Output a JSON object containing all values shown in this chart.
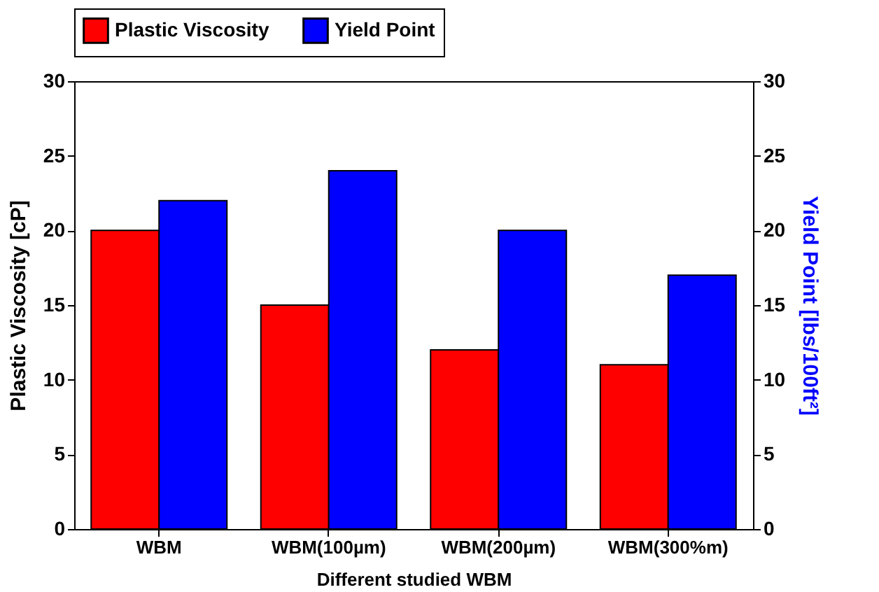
{
  "chart_data": {
    "type": "bar",
    "xlabel": "Different studied WBM",
    "ylabel": "Plastic Viscosity [cP]",
    "y2label": "Yield Point [lbs/100ft²]",
    "categories": [
      "WBM",
      "WBM(100µm)",
      "WBM(200µm)",
      "WBM(300%m)"
    ],
    "series": [
      {
        "name": "Plastic Viscosity",
        "color": "#ff0000",
        "values": [
          20,
          15,
          12,
          11
        ]
      },
      {
        "name": "Yield Point",
        "color": "#0000ff",
        "values": [
          22,
          24,
          20,
          17
        ],
        "axis": "y2"
      }
    ],
    "ylim": [
      0,
      30
    ],
    "yticks": [
      0,
      5,
      10,
      15,
      20,
      25,
      30
    ],
    "y2lim": [
      0,
      30
    ],
    "y2ticks": [
      0,
      5,
      10,
      15,
      20,
      25,
      30
    ],
    "legend": "top"
  }
}
